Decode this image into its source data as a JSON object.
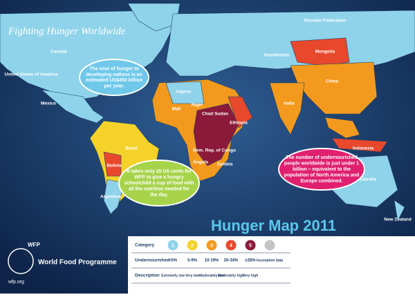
{
  "header": {
    "title": "Fighting Hunger Worldwide"
  },
  "map": {
    "title": "Hunger Map 2011",
    "countries": [
      "Russian Federation",
      "Canada",
      "United States of America",
      "Mexico",
      "Brazil",
      "Bolivia",
      "Argentina",
      "Kazakhstan",
      "Mongolia",
      "China",
      "India",
      "Algeria",
      "Mali",
      "Niger",
      "Chad",
      "Sudan",
      "Ethiopia",
      "Dem. Rep. of Congo",
      "Angola",
      "Zambia",
      "Indonesia",
      "Australia",
      "New Zealand"
    ]
  },
  "callouts": [
    "The cost of hunger to developing nations is an estimated US$450 billion per year.",
    "It takes only 25 US cents for WFP to give a hungry schoolchild a cup of food with all the nutrition needed for the day.",
    "The number of undernourished people worldwide is just under 1 billion – equivalent to the population of North America and Europe combined."
  ],
  "legend": {
    "row_labels": [
      "Category",
      "Undernourished",
      "Description"
    ],
    "categories": [
      1,
      2,
      3,
      4,
      5
    ],
    "colors": [
      "#8fd3ea",
      "#f5d22a",
      "#f39a1e",
      "#e8482c",
      "#8b1a3a",
      "#c4c4c4"
    ],
    "undernourished": [
      "<5%",
      "5-9%",
      "10-19%",
      "20-34%",
      "≥35%",
      "Incomplete data"
    ],
    "descriptions": [
      "Extremely low",
      "Very low",
      "Moderately low",
      "Moderately high",
      "Very high"
    ]
  },
  "logo": {
    "acronym": "WFP",
    "name": "World Food Programme",
    "url": "wfp.org"
  }
}
